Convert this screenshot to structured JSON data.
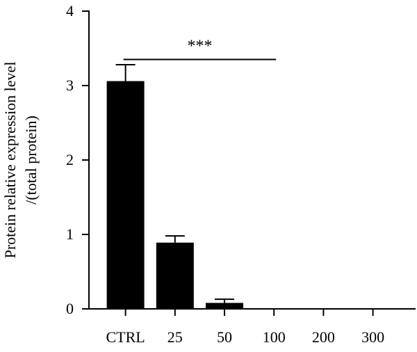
{
  "chart_data": {
    "type": "bar",
    "categories": [
      "CTRL",
      "25",
      "50",
      "100",
      "200",
      "300"
    ],
    "values": [
      3.06,
      0.89,
      0.08,
      0,
      0,
      0
    ],
    "errors": [
      0.22,
      0.09,
      0.05,
      0,
      0,
      0
    ],
    "ylabel_line1": "Protein relative expression level",
    "ylabel_line2": "/(total protein)",
    "ylim": [
      0,
      4
    ],
    "yticks": [
      "0",
      "1",
      "2",
      "3",
      "4"
    ],
    "bar_color": "#000000",
    "grid": false,
    "significance": {
      "label": "***",
      "from_category": "CTRL",
      "to_category": "100",
      "y": 3.35
    }
  }
}
